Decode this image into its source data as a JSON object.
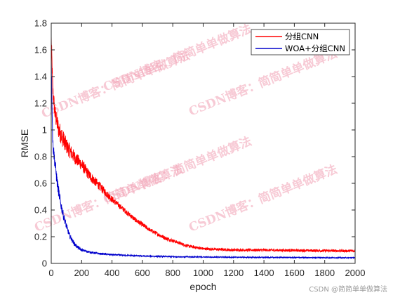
{
  "chart_data": {
    "type": "line",
    "xlabel": "epoch",
    "ylabel": "RMSE",
    "xlim": [
      0,
      2000
    ],
    "ylim": [
      0,
      1.8
    ],
    "xticks": [
      0,
      200,
      400,
      600,
      800,
      1000,
      1200,
      1400,
      1600,
      1800,
      2000
    ],
    "yticks": [
      0,
      0.2,
      0.4,
      0.6,
      0.8,
      1,
      1.2,
      1.4,
      1.6,
      1.8
    ],
    "grid": false,
    "legend_position": "top-right",
    "series": [
      {
        "name": "分组CNN",
        "color": "#ff0000",
        "x": [
          0,
          10,
          25,
          50,
          75,
          100,
          150,
          200,
          250,
          300,
          350,
          400,
          450,
          500,
          550,
          600,
          650,
          700,
          750,
          800,
          850,
          900,
          950,
          1000,
          1100,
          1200,
          1400,
          1600,
          1800,
          2000
        ],
        "y": [
          1.7,
          1.3,
          1.12,
          1.0,
          0.94,
          0.88,
          0.8,
          0.74,
          0.66,
          0.6,
          0.54,
          0.48,
          0.43,
          0.38,
          0.33,
          0.29,
          0.25,
          0.22,
          0.19,
          0.17,
          0.15,
          0.13,
          0.12,
          0.11,
          0.105,
          0.1,
          0.1,
          0.097,
          0.095,
          0.093
        ],
        "noise": [
          0.05,
          0.06,
          0.07,
          0.07,
          0.07,
          0.06,
          0.05,
          0.045,
          0.04,
          0.035,
          0.03,
          0.025,
          0.02,
          0.02,
          0.018,
          0.018,
          0.015,
          0.015,
          0.015,
          0.013,
          0.012,
          0.012,
          0.011,
          0.011,
          0.01,
          0.01,
          0.01,
          0.01,
          0.01,
          0.01
        ]
      },
      {
        "name": "WOA+分组CNN",
        "color": "#0000cc",
        "x": [
          0,
          10,
          25,
          40,
          60,
          80,
          100,
          120,
          150,
          175,
          200,
          250,
          300,
          400,
          500,
          600,
          800,
          1000,
          1200,
          1400,
          1600,
          1800,
          2000
        ],
        "y": [
          1.55,
          0.9,
          0.75,
          0.6,
          0.46,
          0.36,
          0.28,
          0.21,
          0.15,
          0.12,
          0.1,
          0.085,
          0.075,
          0.065,
          0.06,
          0.055,
          0.05,
          0.048,
          0.046,
          0.045,
          0.044,
          0.043,
          0.042
        ],
        "noise": [
          0.05,
          0.05,
          0.05,
          0.045,
          0.04,
          0.03,
          0.025,
          0.02,
          0.015,
          0.012,
          0.01,
          0.008,
          0.007,
          0.006,
          0.005,
          0.005,
          0.005,
          0.004,
          0.004,
          0.004,
          0.004,
          0.004,
          0.004
        ]
      }
    ]
  },
  "watermark": {
    "text": "CSDN博客：简简单单做算法",
    "footer": "CSDN @简简单单做算法",
    "color": "#f2a0b4"
  }
}
